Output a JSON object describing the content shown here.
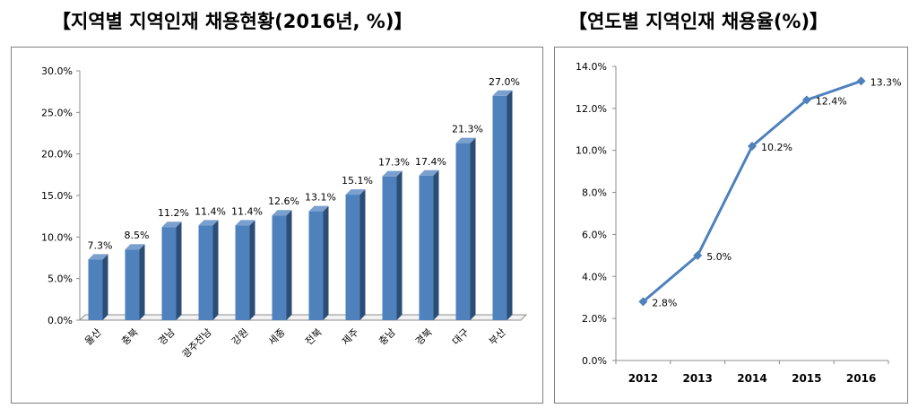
{
  "charts": {
    "left_title": "【지역별 지역인재 채용현황(2016년, %)】",
    "right_title": "【연도별 지역인재 채용율(%)】"
  },
  "colors": {
    "bar_front": "#4f81bd",
    "bar_side": "#2c4d75",
    "bar_top": "#7aa0cf",
    "line": "#4f81bd"
  },
  "chart_data": [
    {
      "type": "bar",
      "title": "【지역별 지역인재 채용현황(2016년, %)】",
      "categories": [
        "울산",
        "충북",
        "경남",
        "광주전남",
        "강원",
        "세종",
        "전북",
        "제주",
        "충남",
        "경북",
        "대구",
        "부산"
      ],
      "values": [
        7.3,
        8.5,
        11.2,
        11.4,
        11.4,
        12.6,
        13.1,
        15.1,
        17.3,
        17.4,
        21.3,
        27.0
      ],
      "data_labels": [
        "7.3%",
        "8.5%",
        "11.2%",
        "11.4%",
        "11.4%",
        "12.6%",
        "13.1%",
        "15.1%",
        "17.3%",
        "17.4%",
        "21.3%",
        "27.0%"
      ],
      "y_ticks": [
        "0.0%",
        "5.0%",
        "10.0%",
        "15.0%",
        "20.0%",
        "25.0%",
        "30.0%"
      ],
      "ylim": [
        0,
        30
      ],
      "grid": false,
      "style": "3d-column"
    },
    {
      "type": "line",
      "title": "【연도별 지역인재 채용율(%)】",
      "x": [
        "2012",
        "2013",
        "2014",
        "2015",
        "2016"
      ],
      "values": [
        2.8,
        5.0,
        10.2,
        12.4,
        13.3
      ],
      "data_labels": [
        "2.8%",
        "5.0%",
        "10.2%",
        "12.4%",
        "13.3%"
      ],
      "y_ticks": [
        "0.0%",
        "2.0%",
        "4.0%",
        "6.0%",
        "8.0%",
        "10.0%",
        "12.0%",
        "14.0%"
      ],
      "ylim": [
        0,
        14
      ],
      "grid": false,
      "marker": "diamond"
    }
  ]
}
